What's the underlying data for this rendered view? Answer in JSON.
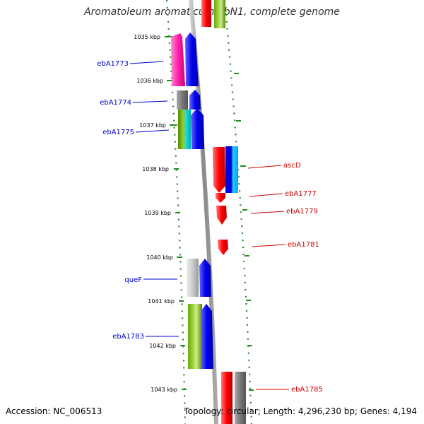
{
  "title": "Aromatoleum aromaticum EbN1, complete genome",
  "footer": {
    "accession": "Accession: NC_006513",
    "topology": "Topology: circular; Length: 4,296,230 bp; Genes: 4,194"
  },
  "ticks": [
    "1035 kbp",
    "1036 kbp",
    "1037 kbp",
    "1038 kbp",
    "1039 kbp",
    "1040 kbp",
    "1041 kbp",
    "1042 kbp",
    "1043 kbp"
  ],
  "genes_left": [
    "ebA1773",
    "ebA1774",
    "ebA1775",
    "queF",
    "ebA1783"
  ],
  "genes_right": [
    "ascD",
    "ebA1777",
    "ebA1779",
    "ebA1781",
    "ebA1785"
  ],
  "colors": {
    "left_label": "#0000cc",
    "right_label": "#cc0000",
    "tick_mark": "#228b22",
    "backbone": "#888888"
  }
}
